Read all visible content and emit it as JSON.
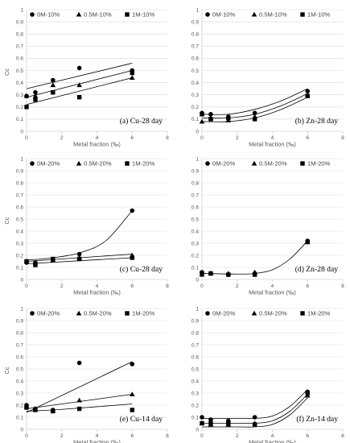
{
  "chart_data": [
    {
      "type": "scatter",
      "panel_label": "(a) Cu-28 day",
      "xlabel": "Metal fraction (‰)",
      "ylabel": "Cc",
      "xlim": [
        0,
        8
      ],
      "ylim": [
        0,
        1
      ],
      "xticks": [
        0,
        2,
        4,
        6,
        8
      ],
      "yticks": [
        0,
        0.1,
        0.2,
        0.3,
        0.4,
        0.5,
        0.6,
        0.7,
        0.8,
        0.9,
        1
      ],
      "grid": true,
      "legend_position": "top",
      "series": [
        {
          "name": "0M-10%",
          "marker": "circle",
          "x": [
            0,
            0.5,
            1.5,
            3,
            6
          ],
          "y": [
            0.29,
            0.32,
            0.42,
            0.52,
            0.5
          ],
          "fit": [
            [
              0,
              0.35
            ],
            [
              6,
              0.56
            ]
          ]
        },
        {
          "name": "0.5M-10%",
          "marker": "triangle",
          "x": [
            0,
            0.5,
            1.5,
            3,
            6
          ],
          "y": [
            0.29,
            0.29,
            0.38,
            0.38,
            0.44
          ],
          "fit": [
            [
              0,
              0.28
            ],
            [
              6,
              0.5
            ]
          ]
        },
        {
          "name": "1M-10%",
          "marker": "square",
          "x": [
            0,
            0.5,
            1.5,
            3,
            6
          ],
          "y": [
            0.2,
            0.26,
            0.32,
            0.28,
            0.48
          ],
          "fit": [
            [
              0,
              0.22
            ],
            [
              6,
              0.44
            ]
          ]
        }
      ]
    },
    {
      "type": "scatter",
      "panel_label": "(b) Zn-28 day",
      "xlabel": "Metal fraction (‰)",
      "ylabel": "",
      "xlim": [
        0,
        8
      ],
      "ylim": [
        0,
        1
      ],
      "xticks": [
        0,
        2,
        4,
        6,
        8
      ],
      "yticks": [
        0,
        0.1,
        0.2,
        0.3,
        0.4,
        0.5,
        0.6,
        0.7,
        0.8,
        0.9,
        1
      ],
      "grid": true,
      "legend_position": "top",
      "series": [
        {
          "name": "0M-10%",
          "marker": "circle",
          "x": [
            0,
            0.5,
            1.5,
            3,
            6
          ],
          "y": [
            0.15,
            0.14,
            0.12,
            0.15,
            0.33
          ],
          "fit": [
            [
              0,
              0.14
            ],
            [
              1.5,
              0.14
            ],
            [
              3,
              0.18
            ],
            [
              4.5,
              0.25
            ],
            [
              6,
              0.35
            ]
          ]
        },
        {
          "name": "0.5M-10%",
          "marker": "triangle",
          "x": [
            0,
            0.5,
            1.5,
            3,
            6
          ],
          "y": [
            0.08,
            0.11,
            0.09,
            0.12,
            0.3
          ],
          "fit": [
            [
              0,
              0.11
            ],
            [
              1.5,
              0.11
            ],
            [
              3,
              0.14
            ],
            [
              4.5,
              0.21
            ],
            [
              6,
              0.31
            ]
          ]
        },
        {
          "name": "1M-10%",
          "marker": "square",
          "x": [
            0,
            0.5,
            1.5,
            3,
            6
          ],
          "y": [
            0.14,
            0.1,
            0.11,
            0.1,
            0.29
          ],
          "fit": [
            [
              0,
              0.08
            ],
            [
              1.5,
              0.08
            ],
            [
              3,
              0.11
            ],
            [
              4.5,
              0.18
            ],
            [
              6,
              0.28
            ]
          ]
        }
      ]
    },
    {
      "type": "scatter",
      "panel_label": "(c) Cu-28 day",
      "xlabel": "Metal fraction (‰)",
      "ylabel": "Cc",
      "xlim": [
        0,
        8
      ],
      "ylim": [
        0,
        1
      ],
      "xticks": [
        0,
        2,
        4,
        6,
        8
      ],
      "yticks": [
        0,
        0.1,
        0.2,
        0.3,
        0.4,
        0.5,
        0.6,
        0.7,
        0.8,
        0.9,
        1
      ],
      "grid": true,
      "legend_position": "top",
      "series": [
        {
          "name": "0M-20%",
          "marker": "circle",
          "x": [
            0,
            0.5,
            1.5,
            3,
            6
          ],
          "y": [
            0.14,
            0.14,
            0.16,
            0.21,
            0.57
          ],
          "fit": [
            [
              0,
              0.16
            ],
            [
              1.5,
              0.18
            ],
            [
              3,
              0.22
            ],
            [
              4.5,
              0.32
            ],
            [
              6,
              0.57
            ]
          ]
        },
        {
          "name": "0.5M-20%",
          "marker": "triangle",
          "x": [
            0,
            0.5,
            1.5,
            3,
            6
          ],
          "y": [
            0.15,
            0.14,
            0.16,
            0.18,
            0.2
          ],
          "fit": [
            [
              0,
              0.15
            ],
            [
              6,
              0.21
            ]
          ]
        },
        {
          "name": "1M-20%",
          "marker": "square",
          "x": [
            0,
            0.5,
            1.5,
            3,
            6
          ],
          "y": [
            0.15,
            0.12,
            0.17,
            0.17,
            0.18
          ],
          "fit": [
            [
              0,
              0.13
            ],
            [
              6,
              0.18
            ]
          ]
        }
      ]
    },
    {
      "type": "scatter",
      "panel_label": "(d) Zn-28 day",
      "xlabel": "Metal fraction (‰)",
      "ylabel": "",
      "xlim": [
        0,
        8
      ],
      "ylim": [
        0,
        1
      ],
      "xticks": [
        0,
        2,
        4,
        6,
        8
      ],
      "yticks": [
        0,
        0.1,
        0.2,
        0.3,
        0.4,
        0.5,
        0.6,
        0.7,
        0.8,
        0.9,
        1
      ],
      "grid": true,
      "legend_position": "top",
      "series": [
        {
          "name": "0M-20%",
          "marker": "circle",
          "x": [
            0,
            0.5,
            1.5,
            3,
            6
          ],
          "y": [
            0.06,
            0.05,
            0.04,
            0.05,
            0.32
          ],
          "fit": [
            [
              0,
              0.05
            ],
            [
              2,
              0.045
            ],
            [
              3,
              0.05
            ],
            [
              4,
              0.08
            ],
            [
              5,
              0.17
            ],
            [
              6,
              0.32
            ]
          ]
        },
        {
          "name": "0.5M-20%",
          "marker": "triangle",
          "x": [
            0,
            0.5,
            1.5,
            3,
            6
          ],
          "y": [
            0.04,
            0.05,
            0.05,
            0.06,
            0.31
          ],
          "fit": []
        },
        {
          "name": "1M-20%",
          "marker": "square",
          "x": [
            0,
            0.5,
            1.5,
            3,
            6
          ],
          "y": [
            0.05,
            0.05,
            0.04,
            0.04,
            0.31
          ],
          "fit": []
        }
      ]
    },
    {
      "type": "scatter",
      "panel_label": "(e) Cu-14 day",
      "xlabel": "Metal fraction (‰)",
      "ylabel": "Cc",
      "xlim": [
        0,
        8
      ],
      "ylim": [
        0,
        1
      ],
      "xticks": [
        0,
        2,
        4,
        6,
        8
      ],
      "yticks": [
        0,
        0.1,
        0.2,
        0.3,
        0.4,
        0.5,
        0.6,
        0.7,
        0.8,
        0.9,
        1
      ],
      "grid": true,
      "legend_position": "top",
      "series": [
        {
          "name": "0M-20%",
          "marker": "circle",
          "x": [
            0,
            0.5,
            1.5,
            3,
            6
          ],
          "y": [
            0.2,
            0.17,
            0.16,
            0.55,
            0.54
          ],
          "fit": [
            [
              0,
              0.14
            ],
            [
              6,
              0.56
            ]
          ]
        },
        {
          "name": "0.5M-20%",
          "marker": "triangle",
          "x": [
            0,
            0.5,
            1.5,
            3,
            6
          ],
          "y": [
            0.19,
            0.17,
            0.16,
            0.24,
            0.29
          ],
          "fit": [
            [
              0,
              0.17
            ],
            [
              6,
              0.29
            ]
          ]
        },
        {
          "name": "1M-20%",
          "marker": "square",
          "x": [
            0,
            0.5,
            1.5,
            3,
            6
          ],
          "y": [
            0.18,
            0.16,
            0.15,
            0.17,
            0.16
          ],
          "fit": [
            [
              0,
              0.15
            ],
            [
              2,
              0.165
            ],
            [
              6,
              0.21
            ]
          ]
        }
      ]
    },
    {
      "type": "scatter",
      "panel_label": "(f) Zn-14 day",
      "xlabel": "Metal fraction (‰)",
      "ylabel": "",
      "xlim": [
        0,
        8
      ],
      "ylim": [
        0,
        1
      ],
      "xticks": [
        0,
        2,
        4,
        6,
        8
      ],
      "yticks": [
        0,
        0.1,
        0.2,
        0.3,
        0.4,
        0.5,
        0.6,
        0.7,
        0.8,
        0.9,
        1
      ],
      "grid": true,
      "legend_position": "top",
      "series": [
        {
          "name": "0M-20%",
          "marker": "circle",
          "x": [
            0,
            0.5,
            1.5,
            3,
            6
          ],
          "y": [
            0.1,
            0.08,
            0.07,
            0.1,
            0.31
          ],
          "fit": [
            [
              0,
              0.09
            ],
            [
              2,
              0.09
            ],
            [
              3,
              0.09
            ],
            [
              4,
              0.11
            ],
            [
              5,
              0.19
            ],
            [
              6,
              0.33
            ]
          ]
        },
        {
          "name": "0.5M-20%",
          "marker": "triangle",
          "x": [
            0,
            0.5,
            1.5,
            3,
            6
          ],
          "y": [
            0.05,
            0.04,
            0.04,
            0.05,
            0.28
          ],
          "fit": [
            [
              0,
              0.05
            ],
            [
              2,
              0.05
            ],
            [
              3,
              0.05
            ],
            [
              4,
              0.07
            ],
            [
              5,
              0.15
            ],
            [
              6,
              0.29
            ]
          ]
        },
        {
          "name": "1M-20%",
          "marker": "square",
          "x": [
            0,
            0.5,
            1.5,
            3,
            6
          ],
          "y": [
            0.05,
            0.05,
            0.05,
            0.04,
            0.3
          ],
          "fit": [
            [
              0,
              0.02
            ],
            [
              2,
              0.02
            ],
            [
              3,
              0.02
            ],
            [
              4,
              0.04
            ],
            [
              5,
              0.12
            ],
            [
              6,
              0.26
            ]
          ]
        }
      ]
    }
  ]
}
